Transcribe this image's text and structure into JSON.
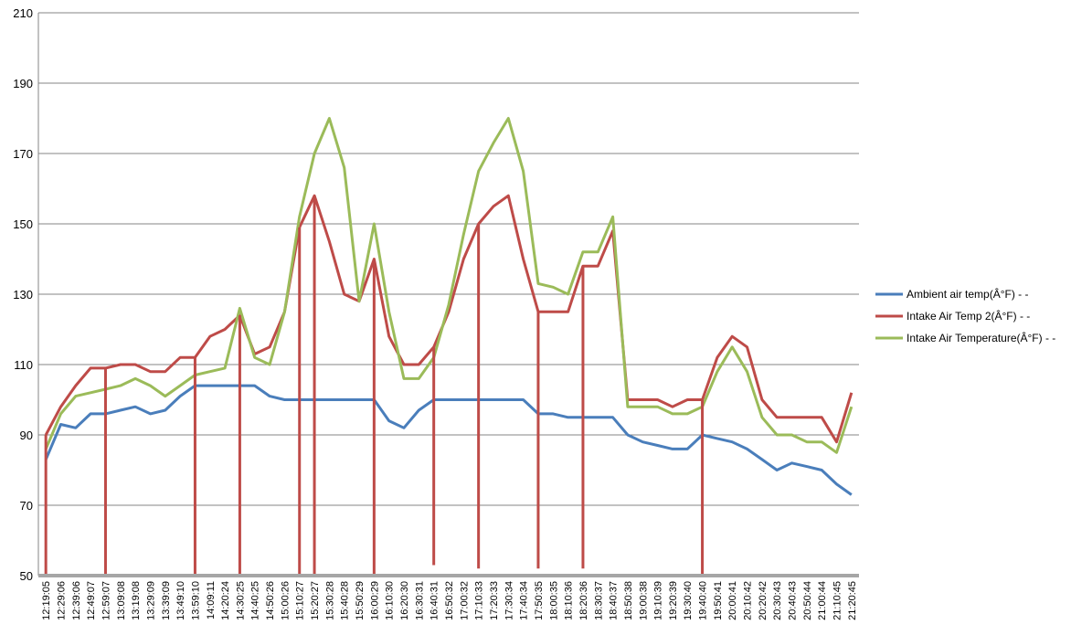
{
  "chart_data": {
    "type": "line",
    "title": "",
    "xlabel": "",
    "ylabel": "",
    "ylim": [
      50,
      210
    ],
    "yticks": [
      50,
      70,
      90,
      110,
      130,
      150,
      170,
      190,
      210
    ],
    "grid": true,
    "legend_position": "right",
    "categories": [
      "12:19:05",
      "12:29:06",
      "12:39:06",
      "12:49:07",
      "12:59:07",
      "13:09:08",
      "13:19:08",
      "13:29:09",
      "13:39:09",
      "13:49:10",
      "13:59:10",
      "14:09:11",
      "14:20:24",
      "14:30:25",
      "14:40:25",
      "14:50:26",
      "15:00:26",
      "15:10:27",
      "15:20:27",
      "15:30:28",
      "15:40:28",
      "15:50:29",
      "16:00:29",
      "16:10:30",
      "16:20:30",
      "16:30:31",
      "16:40:31",
      "16:50:32",
      "17:00:32",
      "17:10:33",
      "17:20:33",
      "17:30:34",
      "17:40:34",
      "17:50:35",
      "18:00:35",
      "18:10:36",
      "18:20:36",
      "18:30:37",
      "18:40:37",
      "18:50:38",
      "19:00:38",
      "19:10:39",
      "19:20:39",
      "19:30:40",
      "19:40:40",
      "19:50:41",
      "20:00:41",
      "20:10:42",
      "20:20:42",
      "20:30:43",
      "20:40:43",
      "20:50:44",
      "21:00:44",
      "21:10:45",
      "21:20:45"
    ],
    "series": [
      {
        "name": "Ambient air temp(Â°F) - -",
        "color": "#4a7ebb",
        "values": [
          83,
          93,
          92,
          96,
          96,
          97,
          98,
          96,
          97,
          101,
          104,
          104,
          104,
          104,
          104,
          101,
          100,
          100,
          100,
          100,
          100,
          100,
          100,
          94,
          92,
          97,
          100,
          100,
          100,
          100,
          100,
          100,
          100,
          96,
          96,
          95,
          95,
          95,
          95,
          90,
          88,
          87,
          86,
          86,
          90,
          89,
          88,
          86,
          83,
          80,
          82,
          81,
          80,
          76,
          73
        ]
      },
      {
        "name": "Intake Air Temp 2(Â°F) - -",
        "color": "#be4b48",
        "values": [
          90,
          98,
          104,
          109,
          109,
          110,
          110,
          108,
          108,
          112,
          112,
          118,
          120,
          124,
          113,
          115,
          125,
          149,
          158,
          145,
          130,
          128,
          140,
          118,
          110,
          110,
          115,
          125,
          140,
          150,
          155,
          158,
          140,
          125,
          125,
          125,
          138,
          138,
          148,
          100,
          100,
          100,
          98,
          100,
          100,
          112,
          118,
          115,
          100,
          95,
          95,
          95,
          95,
          88,
          102
        ]
      },
      {
        "name": "Intake Air Temperature(Â°F) - -",
        "color": "#9bbb59",
        "values": [
          86,
          96,
          101,
          102,
          103,
          104,
          106,
          104,
          101,
          104,
          107,
          108,
          109,
          126,
          112,
          110,
          125,
          152,
          170,
          180,
          166,
          128,
          150,
          125,
          106,
          106,
          112,
          127,
          147,
          165,
          173,
          180,
          165,
          133,
          132,
          130,
          142,
          142,
          152,
          98,
          98,
          98,
          96,
          96,
          98,
          108,
          115,
          108,
          95,
          90,
          90,
          88,
          88,
          85,
          98
        ]
      }
    ],
    "drops": [
      {
        "series": "Intake Air Temp 2(Â°F) - -",
        "category": "12:19:05",
        "value": 50
      },
      {
        "series": "Intake Air Temp 2(Â°F) - -",
        "category": "12:59:07",
        "value": 50
      },
      {
        "series": "Intake Air Temp 2(Â°F) - -",
        "category": "13:59:10",
        "value": 50
      },
      {
        "series": "Intake Air Temp 2(Â°F) - -",
        "category": "14:30:25",
        "value": 50
      },
      {
        "series": "Intake Air Temp 2(Â°F) - -",
        "category": "15:10:27",
        "value": 50
      },
      {
        "series": "Intake Air Temp 2(Â°F) - -",
        "category": "15:20:27",
        "value": 50
      },
      {
        "series": "Intake Air Temp 2(Â°F) - -",
        "category": "16:00:29",
        "value": 50
      },
      {
        "series": "Intake Air Temp 2(Â°F) - -",
        "category": "16:40:31",
        "value": 53
      },
      {
        "series": "Intake Air Temp 2(Â°F) - -",
        "category": "17:10:33",
        "value": 52
      },
      {
        "series": "Intake Air Temp 2(Â°F) - -",
        "category": "17:50:35",
        "value": 52
      },
      {
        "series": "Intake Air Temp 2(Â°F) - -",
        "category": "18:20:36",
        "value": 52
      },
      {
        "series": "Intake Air Temp 2(Â°F) - -",
        "category": "19:40:40",
        "value": 50
      }
    ]
  }
}
